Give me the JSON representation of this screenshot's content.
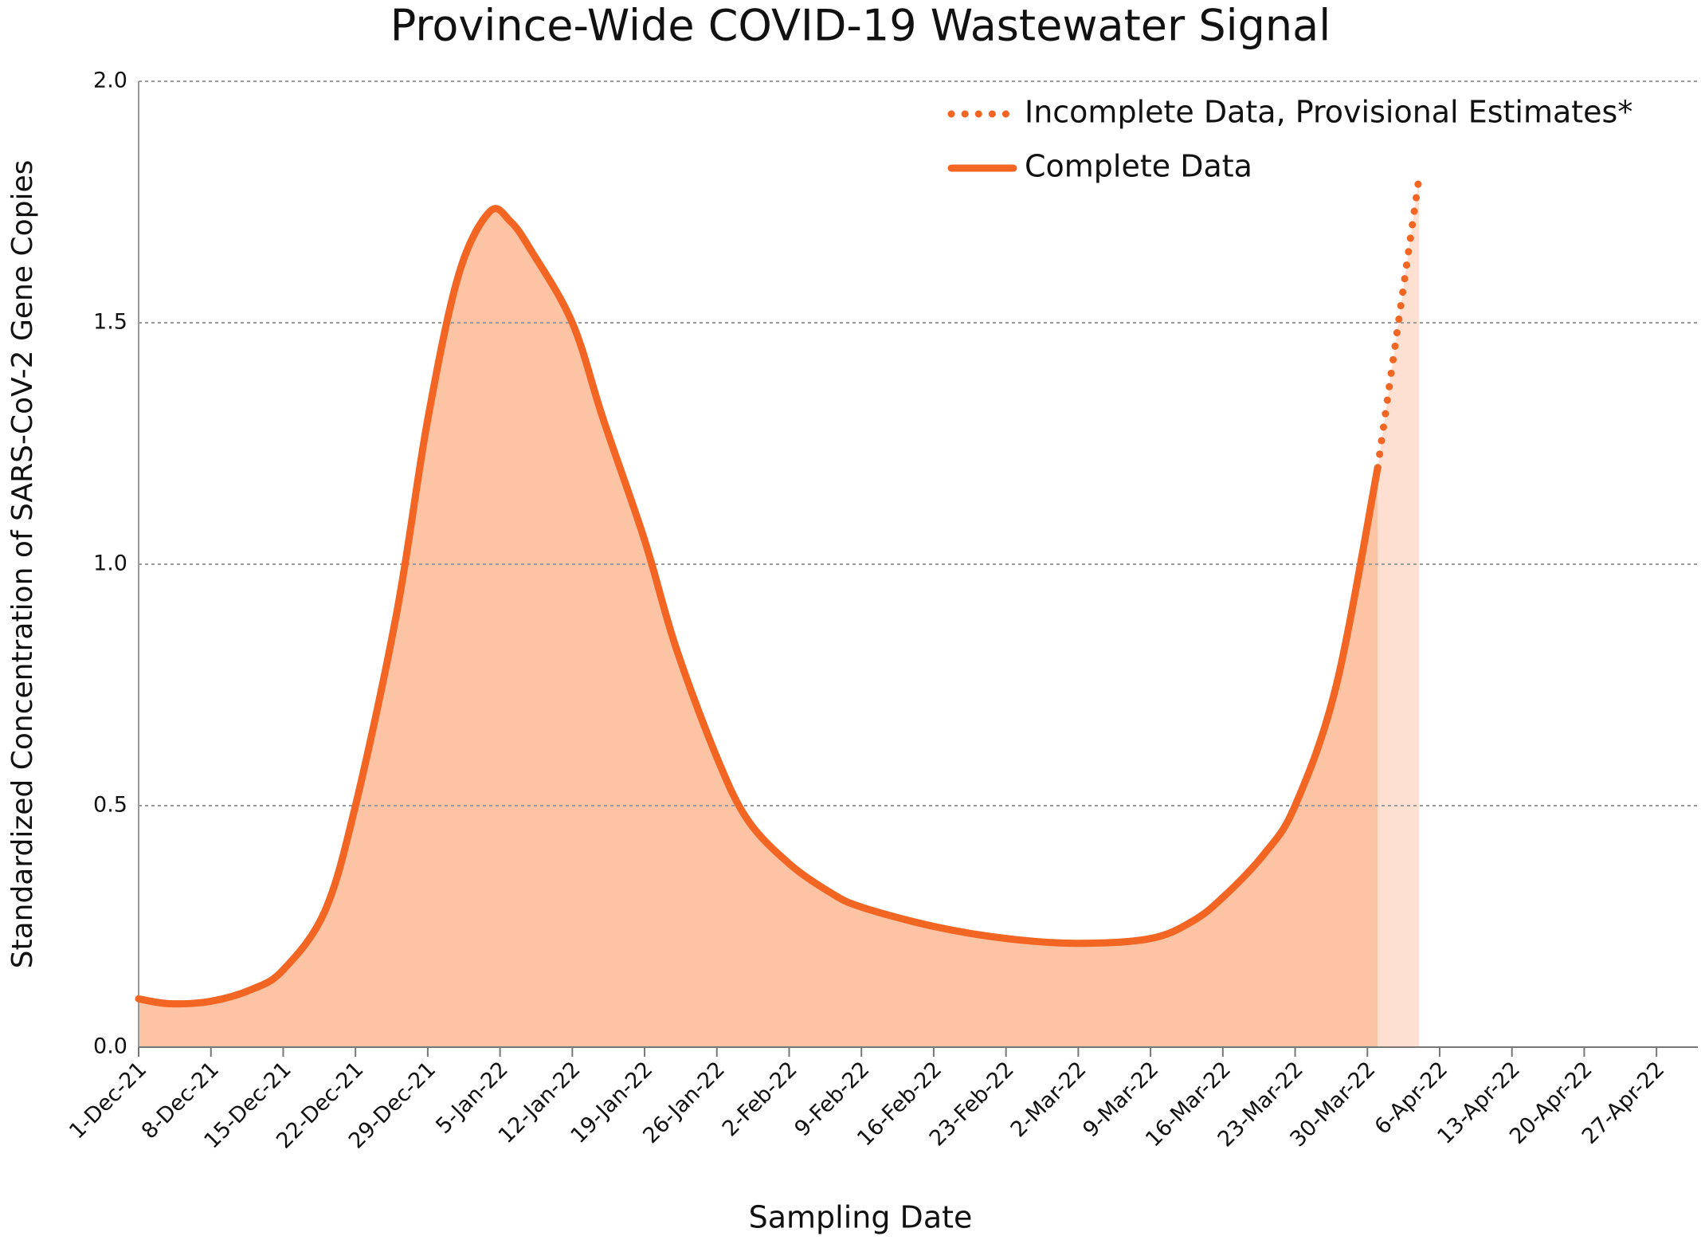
{
  "chart_data": {
    "type": "line",
    "title": "Province-Wide COVID-19 Wastewater Signal",
    "x_label": "Sampling Date",
    "y_label": "Standardized Concentration of SARS-CoV-2 Gene Copies",
    "x": [
      "2021-12-01",
      "2021-12-04",
      "2021-12-08",
      "2021-12-12",
      "2021-12-15",
      "2021-12-19",
      "2021-12-22",
      "2021-12-26",
      "2021-12-29",
      "2022-01-01",
      "2022-01-04",
      "2022-01-06",
      "2022-01-08",
      "2022-01-12",
      "2022-01-15",
      "2022-01-19",
      "2022-01-22",
      "2022-01-26",
      "2022-01-29",
      "2022-02-02",
      "2022-02-06",
      "2022-02-09",
      "2022-02-16",
      "2022-02-23",
      "2022-03-02",
      "2022-03-09",
      "2022-03-13",
      "2022-03-16",
      "2022-03-20",
      "2022-03-23",
      "2022-03-27",
      "2022-03-31",
      "2022-04-04"
    ],
    "series": [
      {
        "name": "Incomplete Data, Provisional Estimates*",
        "color": "#f26522",
        "fill": "#fde0d2",
        "dash": "dotted",
        "values": [
          null,
          null,
          null,
          null,
          null,
          null,
          null,
          null,
          null,
          null,
          null,
          null,
          null,
          null,
          null,
          null,
          null,
          null,
          null,
          null,
          null,
          null,
          null,
          null,
          null,
          null,
          null,
          null,
          null,
          null,
          null,
          1.2,
          1.8
        ]
      },
      {
        "name": "Complete Data",
        "color": "#f26522",
        "fill": "#fcc4a4",
        "dash": "solid",
        "values": [
          0.1,
          0.09,
          0.095,
          0.12,
          0.16,
          0.28,
          0.5,
          0.9,
          1.3,
          1.6,
          1.73,
          1.71,
          1.65,
          1.5,
          1.3,
          1.05,
          0.83,
          0.6,
          0.47,
          0.38,
          0.32,
          0.29,
          0.25,
          0.225,
          0.215,
          0.225,
          0.26,
          0.31,
          0.4,
          0.5,
          0.75,
          1.2,
          null
        ]
      }
    ],
    "xlim": [
      "2021-12-01",
      "2022-05-01"
    ],
    "xticks": [
      {
        "value": "2021-12-01",
        "label": "1-Dec-21"
      },
      {
        "value": "2021-12-08",
        "label": "8-Dec-21"
      },
      {
        "value": "2021-12-15",
        "label": "15-Dec-21"
      },
      {
        "value": "2021-12-22",
        "label": "22-Dec-21"
      },
      {
        "value": "2021-12-29",
        "label": "29-Dec-21"
      },
      {
        "value": "2022-01-05",
        "label": "5-Jan-22"
      },
      {
        "value": "2022-01-12",
        "label": "12-Jan-22"
      },
      {
        "value": "2022-01-19",
        "label": "19-Jan-22"
      },
      {
        "value": "2022-01-26",
        "label": "26-Jan-22"
      },
      {
        "value": "2022-02-02",
        "label": "2-Feb-22"
      },
      {
        "value": "2022-02-09",
        "label": "9-Feb-22"
      },
      {
        "value": "2022-02-16",
        "label": "16-Feb-22"
      },
      {
        "value": "2022-02-23",
        "label": "23-Feb-22"
      },
      {
        "value": "2022-03-02",
        "label": "2-Mar-22"
      },
      {
        "value": "2022-03-09",
        "label": "9-Mar-22"
      },
      {
        "value": "2022-03-16",
        "label": "16-Mar-22"
      },
      {
        "value": "2022-03-23",
        "label": "23-Mar-22"
      },
      {
        "value": "2022-03-30",
        "label": "30-Mar-22"
      },
      {
        "value": "2022-04-06",
        "label": "6-Apr-22"
      },
      {
        "value": "2022-04-13",
        "label": "13-Apr-22"
      },
      {
        "value": "2022-04-20",
        "label": "20-Apr-22"
      },
      {
        "value": "2022-04-27",
        "label": "27-Apr-22"
      }
    ],
    "ylim": [
      0,
      2
    ],
    "yticks": [
      {
        "value": 0,
        "label": "0.0"
      },
      {
        "value": 0.5,
        "label": "0.5"
      },
      {
        "value": 1,
        "label": "1.0"
      },
      {
        "value": 1.5,
        "label": "1.5"
      },
      {
        "value": 2,
        "label": "2.0"
      }
    ],
    "grid": true,
    "legend": "upper right"
  }
}
